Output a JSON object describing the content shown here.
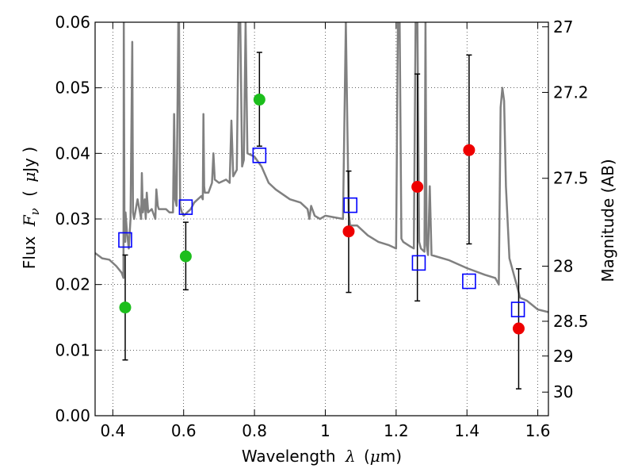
{
  "chart_data": {
    "type": "scatter",
    "xlabel_text": "Wavelength",
    "xlabel_symbol": "λ",
    "xlabel_unit_open": "(",
    "xlabel_unit_mu": "μ",
    "xlabel_unit_rest": "m)",
    "ylabel_text": "Flux",
    "ylabel_symbol": "F",
    "ylabel_sub": "ν",
    "ylabel_unit_open": "(",
    "ylabel_unit_mu": "μ",
    "ylabel_unit_rest": "Jy )",
    "y2label": "Magnitude (AB)",
    "xlim": [
      0.35,
      1.63
    ],
    "ylim": [
      0.0,
      0.06
    ],
    "grid": true,
    "x_ticks": [
      {
        "v": 0.4,
        "label": "0.4"
      },
      {
        "v": 0.6,
        "label": "0.6"
      },
      {
        "v": 0.8,
        "label": "0.8"
      },
      {
        "v": 1.0,
        "label": "1"
      },
      {
        "v": 1.2,
        "label": "1.2"
      },
      {
        "v": 1.4,
        "label": "1.4"
      },
      {
        "v": 1.6,
        "label": "1.6"
      }
    ],
    "y_ticks": [
      {
        "v": 0.0,
        "label": "0.00"
      },
      {
        "v": 0.01,
        "label": "0.01"
      },
      {
        "v": 0.02,
        "label": "0.02"
      },
      {
        "v": 0.03,
        "label": "0.03"
      },
      {
        "v": 0.04,
        "label": "0.04"
      },
      {
        "v": 0.05,
        "label": "0.05"
      },
      {
        "v": 0.06,
        "label": "0.06"
      }
    ],
    "y2_ticks": [
      {
        "flux": 0.0593,
        "label": "27"
      },
      {
        "flux": 0.0493,
        "label": "27.2"
      },
      {
        "flux": 0.0362,
        "label": "27.5"
      },
      {
        "flux": 0.0228,
        "label": "28"
      },
      {
        "flux": 0.0144,
        "label": "28.5"
      },
      {
        "flux": 0.0091,
        "label": "29"
      },
      {
        "flux": 0.0036,
        "label": "30"
      }
    ],
    "colors": {
      "sed": "#808080",
      "model": "#0000ff",
      "green": "#1cbe1c",
      "red": "#ee0000",
      "errorbar": "#000000"
    },
    "sed_spectrum": {
      "x": [
        0.35,
        0.37,
        0.39,
        0.41,
        0.425,
        0.43,
        0.431,
        0.433,
        0.435,
        0.436,
        0.44,
        0.445,
        0.45,
        0.455,
        0.457,
        0.46,
        0.47,
        0.48,
        0.482,
        0.485,
        0.49,
        0.493,
        0.496,
        0.5,
        0.51,
        0.52,
        0.523,
        0.527,
        0.53,
        0.55,
        0.56,
        0.57,
        0.573,
        0.576,
        0.58,
        0.585,
        0.587,
        0.59,
        0.595,
        0.6,
        0.62,
        0.63,
        0.65,
        0.654,
        0.656,
        0.658,
        0.66,
        0.67,
        0.68,
        0.684,
        0.688,
        0.7,
        0.72,
        0.73,
        0.735,
        0.74,
        0.75,
        0.755,
        0.76,
        0.765,
        0.77,
        0.775,
        0.78,
        0.8,
        0.82,
        0.84,
        0.86,
        0.9,
        0.93,
        0.95,
        0.955,
        0.96,
        0.97,
        0.985,
        1.0,
        1.05,
        1.058,
        1.062,
        1.066,
        1.07,
        1.09,
        1.12,
        1.15,
        1.18,
        1.2,
        1.205,
        1.21,
        1.215,
        1.22,
        1.24,
        1.25,
        1.255,
        1.26,
        1.265,
        1.27,
        1.28,
        1.283,
        1.286,
        1.29,
        1.295,
        1.3,
        1.35,
        1.4,
        1.45,
        1.48,
        1.49,
        1.495,
        1.5,
        1.505,
        1.51,
        1.52,
        1.55,
        1.57,
        1.6,
        1.63
      ],
      "y": [
        0.0248,
        0.024,
        0.0238,
        0.0228,
        0.0218,
        0.021,
        0.06,
        0.027,
        0.0265,
        0.031,
        0.028,
        0.0255,
        0.03,
        0.057,
        0.031,
        0.03,
        0.033,
        0.03,
        0.037,
        0.031,
        0.033,
        0.03,
        0.034,
        0.031,
        0.0315,
        0.03,
        0.0345,
        0.032,
        0.0315,
        0.0315,
        0.031,
        0.031,
        0.046,
        0.033,
        0.032,
        0.06,
        0.06,
        0.032,
        0.031,
        0.0305,
        0.0315,
        0.0325,
        0.0335,
        0.033,
        0.046,
        0.035,
        0.034,
        0.034,
        0.0355,
        0.04,
        0.036,
        0.0355,
        0.036,
        0.0355,
        0.045,
        0.0365,
        0.0375,
        0.06,
        0.06,
        0.038,
        0.039,
        0.06,
        0.04,
        0.0395,
        0.038,
        0.0355,
        0.0345,
        0.033,
        0.0325,
        0.0315,
        0.03,
        0.032,
        0.0305,
        0.03,
        0.0305,
        0.03,
        0.06,
        0.045,
        0.031,
        0.029,
        0.029,
        0.0275,
        0.0265,
        0.026,
        0.0255,
        0.06,
        0.06,
        0.027,
        0.0265,
        0.0258,
        0.0255,
        0.06,
        0.06,
        0.0265,
        0.0255,
        0.025,
        0.06,
        0.026,
        0.0245,
        0.035,
        0.0245,
        0.0237,
        0.0225,
        0.0215,
        0.021,
        0.02,
        0.047,
        0.05,
        0.048,
        0.035,
        0.024,
        0.018,
        0.0175,
        0.0162,
        0.0158
      ]
    },
    "model_points": [
      {
        "x": 0.435,
        "y": 0.0268
      },
      {
        "x": 0.606,
        "y": 0.0318
      },
      {
        "x": 0.814,
        "y": 0.0397
      },
      {
        "x": 1.071,
        "y": 0.0321
      },
      {
        "x": 1.264,
        "y": 0.0233
      },
      {
        "x": 1.406,
        "y": 0.0205
      },
      {
        "x": 1.544,
        "y": 0.0162
      }
    ],
    "observed_green": [
      {
        "x": 0.435,
        "y": 0.0165,
        "err_low": 0.0085,
        "err_high": 0.0245
      },
      {
        "x": 0.606,
        "y": 0.0243,
        "err_low": 0.0192,
        "err_high": 0.0295
      },
      {
        "x": 0.814,
        "y": 0.0482,
        "err_low": 0.0411,
        "err_high": 0.0554
      }
    ],
    "observed_red": [
      {
        "x": 1.066,
        "y": 0.0281,
        "err_low": 0.0188,
        "err_high": 0.0373
      },
      {
        "x": 1.26,
        "y": 0.0349,
        "err_low": 0.0175,
        "err_high": 0.0521
      },
      {
        "x": 1.406,
        "y": 0.0405,
        "err_low": 0.0262,
        "err_high": 0.055
      },
      {
        "x": 1.546,
        "y": 0.0133,
        "err_low": 0.0041,
        "err_high": 0.0224
      }
    ]
  }
}
